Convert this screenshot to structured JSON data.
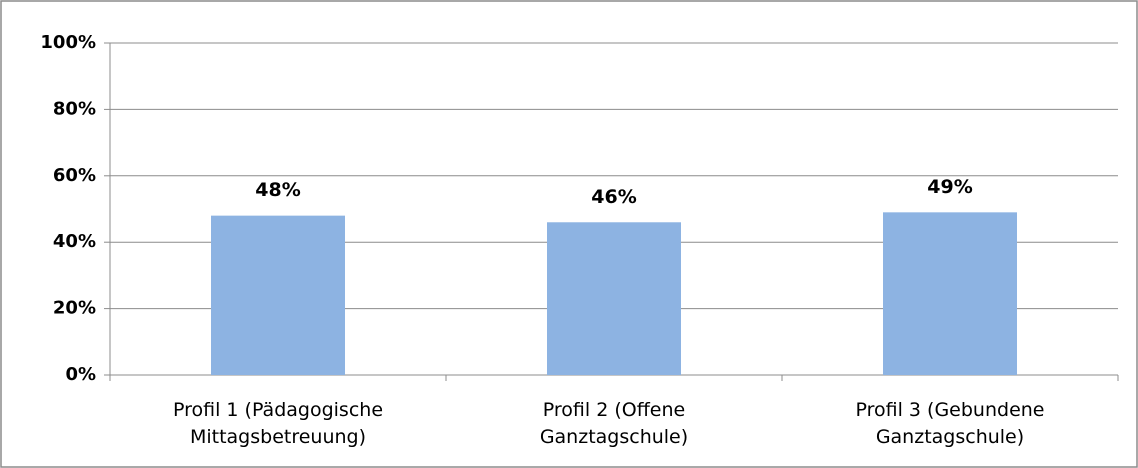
{
  "chart_data": {
    "type": "bar",
    "categories": [
      "Profil 1 (Pädagogische Mittagsbetreuung)",
      "Profil 2 (Offene Ganztagschule)",
      "Profil 3 (Gebundene Ganztagschule)"
    ],
    "values": [
      48,
      46,
      49
    ],
    "value_labels": [
      "48%",
      "46%",
      "49%"
    ],
    "color": "#8db3e2",
    "ylim": [
      0,
      100
    ],
    "yticks": [
      {
        "value": 0,
        "label": "0%"
      },
      {
        "value": 20,
        "label": "20%"
      },
      {
        "value": 40,
        "label": "40%"
      },
      {
        "value": 60,
        "label": "60%"
      },
      {
        "value": 80,
        "label": "80%"
      },
      {
        "value": 100,
        "label": "100%"
      }
    ],
    "grid": true
  }
}
